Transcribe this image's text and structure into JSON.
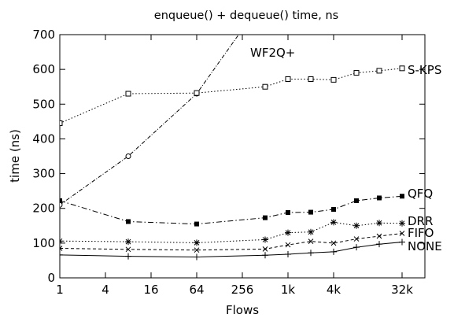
{
  "chart_data": {
    "type": "line",
    "title": "enqueue() + dequeue() time, ns",
    "xlabel": "Flows",
    "ylabel": "time (ns)",
    "x_scale": "log2",
    "xlim": [
      1,
      65536
    ],
    "ylim": [
      0,
      700
    ],
    "x_ticks": [
      {
        "value": 1,
        "label": "1"
      },
      {
        "value": 4,
        "label": "4"
      },
      {
        "value": 16,
        "label": "16"
      },
      {
        "value": 64,
        "label": "64"
      },
      {
        "value": 256,
        "label": "256"
      },
      {
        "value": 1024,
        "label": "1k"
      },
      {
        "value": 4096,
        "label": "4k"
      },
      {
        "value": 32768,
        "label": "32k"
      }
    ],
    "y_ticks": [
      0,
      100,
      200,
      300,
      400,
      500,
      600,
      700
    ],
    "grid": false,
    "legend": "inline labels at right end of each series",
    "series": [
      {
        "name": "WF2Q+",
        "marker": "open-circle",
        "dash": "dash-dot",
        "x": [
          1,
          8,
          64,
          1024
        ],
        "y": [
          210,
          350,
          530,
          900
        ]
      },
      {
        "name": "S-KPS",
        "marker": "open-square",
        "dash": "dotted",
        "x": [
          1,
          8,
          64,
          512,
          1024,
          2048,
          4096,
          8192,
          16384,
          32768
        ],
        "y": [
          445,
          530,
          532,
          550,
          572,
          572,
          570,
          590,
          596,
          603
        ]
      },
      {
        "name": "QFQ",
        "marker": "filled-square",
        "dash": "long-dash-dot",
        "x": [
          1,
          8,
          64,
          512,
          1024,
          2048,
          4096,
          8192,
          16384,
          32768
        ],
        "y": [
          222,
          162,
          155,
          173,
          188,
          189,
          197,
          222,
          230,
          235
        ]
      },
      {
        "name": "DRR",
        "marker": "star",
        "dash": "dotted",
        "x": [
          1,
          8,
          64,
          512,
          1024,
          2048,
          4096,
          8192,
          16384,
          32768
        ],
        "y": [
          106,
          104,
          101,
          110,
          130,
          132,
          160,
          150,
          158,
          157
        ]
      },
      {
        "name": "FIFO",
        "marker": "x",
        "dash": "dashed",
        "x": [
          1,
          8,
          64,
          512,
          1024,
          2048,
          4096,
          8192,
          16384,
          32768
        ],
        "y": [
          85,
          82,
          80,
          83,
          95,
          105,
          100,
          112,
          120,
          128
        ]
      },
      {
        "name": "NONE",
        "marker": "plus",
        "dash": "solid",
        "x": [
          1,
          8,
          64,
          512,
          1024,
          2048,
          4096,
          8192,
          16384,
          32768
        ],
        "y": [
          66,
          62,
          60,
          65,
          68,
          72,
          75,
          88,
          97,
          103
        ]
      }
    ]
  }
}
